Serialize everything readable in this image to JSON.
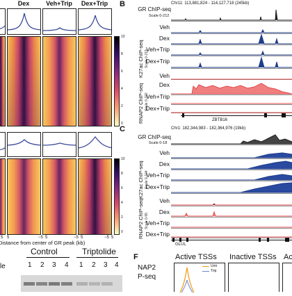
{
  "panelA": {
    "column_titles": [
      "Dex",
      "Veh+Trip",
      "Dex+Trip"
    ],
    "x_axis_label": "Distance from center of GR peak (kb)",
    "x_ticks": [
      "5",
      "5",
      "−5",
      "5",
      "−5",
      "5",
      "−5",
      "5"
    ],
    "scale_ticks_top": [
      "10",
      "8",
      "6",
      "4",
      "2",
      "0"
    ],
    "scale_ticks_bottom": [
      "10",
      "8",
      "6",
      "4",
      "2",
      "0"
    ]
  },
  "panelB": {
    "letter": "B",
    "coord": "Chr11: 113,881,824 - 114,127,718 (245kb)",
    "gr_label": "GR ChIP-seq",
    "gr_scale": "Scale 0-212",
    "k27_group": "K27ac ChIP-seq",
    "k27_scale": "Scale 0-219",
    "rnap2_group": "RNAP2 ChIP-seq",
    "rnap2_scale": "Scale 0-322",
    "tracks": [
      "Veh",
      "Dex",
      "Veh+Trip",
      "Dex+Trip",
      "Veh",
      "Dex",
      "Veh+Trip",
      "Dex+Trip"
    ],
    "gene": "ZBTB16"
  },
  "panelC": {
    "letter": "C",
    "coord": "Chr1: 182,344,983 - 182,364,976 (19kb)",
    "gr_label": "GR ChIP-seq",
    "gr_scale": "Scale 0-18",
    "k27_group": "K27ac ChIP-seq",
    "k27_scale": "Scale 0-104",
    "rnap2_group": "RNAP2 ChIP-seq",
    "rnap2_scale": "Scale 0-95",
    "tracks": [
      "Veh",
      "Dex",
      "Veh+Trip",
      "Dex+Trip",
      "Veh",
      "Dex",
      "Veh+Trip",
      "Dex+Trip"
    ],
    "gene": "GLUL"
  },
  "panelE": {
    "left_label": "le",
    "groups": [
      "Control",
      "Triptolide"
    ],
    "lanes_control": [
      "1",
      "2",
      "3",
      "4"
    ],
    "lanes_trip": [
      "1",
      "2",
      "3",
      "4"
    ]
  },
  "panelF": {
    "letter": "F",
    "y_label_line1": "NAP2",
    "y_label_line2": "P-seq",
    "plot_titles": [
      "Active TSSs",
      "Inactive TSSs",
      "Ac"
    ],
    "legend": [
      "Untr",
      "Trip"
    ]
  },
  "colors": {
    "gr_track": "#222222",
    "k27_track": "#1f3d8a",
    "rnap2_track": "#e34a4a",
    "untr": "#f0a020",
    "trip": "#6a87c8"
  }
}
